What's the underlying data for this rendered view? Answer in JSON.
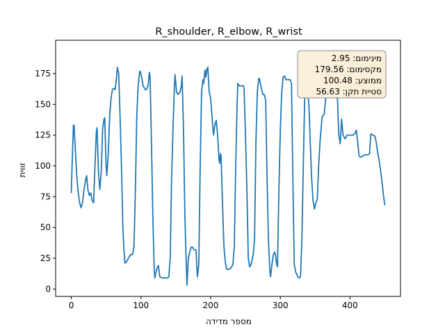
{
  "chart_data": {
    "type": "line",
    "title": "R_shoulder, R_elbow, R_wrist",
    "x_label": "מספר מדידה",
    "y_label": "זווית",
    "annotation": [
      "מינימום: 2.95",
      "מקסימום: 179.56",
      "ממוצע: 100.48",
      "סטיית תקן: 56.63"
    ],
    "color": "#1f77b4",
    "xlim": [
      -22.5,
      472.5
    ],
    "ylim": [
      -6,
      202
    ],
    "xticks": [
      0,
      100,
      200,
      300,
      400
    ],
    "yticks": [
      0,
      25,
      50,
      75,
      100,
      125,
      150,
      175
    ],
    "x": [
      0,
      2,
      3,
      4,
      6,
      8,
      10,
      12,
      14,
      16,
      18,
      21,
      22,
      24,
      26,
      28,
      30,
      32,
      34,
      36,
      37,
      39,
      41,
      43,
      45,
      47,
      48,
      50,
      51,
      53,
      55,
      57,
      59,
      61,
      63,
      65,
      66,
      68,
      70,
      72,
      74,
      76,
      77,
      79,
      82,
      85,
      88,
      90,
      92,
      94,
      96,
      98,
      99,
      101,
      103,
      106,
      108,
      110,
      111,
      112,
      113,
      115,
      117,
      119,
      120,
      122,
      124,
      125,
      127,
      130,
      134,
      138,
      140,
      142,
      144,
      146,
      148,
      149,
      151,
      153,
      156,
      158,
      159,
      161,
      163,
      165,
      166,
      168,
      170,
      172,
      174,
      176,
      179,
      181,
      183,
      185,
      187,
      189,
      190,
      192,
      193,
      195,
      196,
      198,
      200,
      202,
      204,
      206,
      208,
      210,
      212,
      213,
      214,
      215,
      217,
      219,
      221,
      223,
      226,
      229,
      232,
      234,
      236,
      238,
      239,
      241,
      244,
      247,
      248,
      250,
      252,
      254,
      256,
      258,
      261,
      263,
      265,
      267,
      269,
      270,
      272,
      275,
      277,
      279,
      281,
      283,
      285,
      286,
      288,
      290,
      292,
      293,
      295,
      296,
      298,
      300,
      302,
      304,
      306,
      308,
      310,
      312,
      314,
      316,
      318,
      320,
      322,
      325,
      327,
      329,
      331,
      333,
      335,
      337,
      339,
      341,
      343,
      345,
      347,
      349,
      351,
      353,
      355,
      357,
      360,
      363,
      366,
      369,
      372,
      375,
      378,
      380,
      382,
      384,
      386,
      388,
      390,
      393,
      396,
      400,
      404,
      407,
      409,
      411,
      413,
      415,
      418,
      422,
      426,
      428,
      430,
      433,
      436,
      438,
      440,
      442,
      444,
      446,
      448,
      450
    ],
    "values": [
      78,
      115,
      133,
      133,
      110,
      90,
      78,
      70,
      66,
      70,
      80,
      90,
      92,
      80,
      76,
      78,
      72,
      70,
      100,
      128,
      131,
      95,
      81,
      95,
      130,
      138,
      139,
      100,
      92,
      110,
      140,
      155,
      162,
      163,
      162,
      172,
      180,
      175,
      140,
      100,
      50,
      28,
      21,
      22,
      25,
      28,
      28,
      35,
      80,
      140,
      165,
      176,
      177,
      172,
      165,
      162,
      162,
      165,
      170,
      176,
      173,
      120,
      60,
      15,
      9,
      15,
      18,
      19,
      10,
      9,
      9,
      9,
      10,
      25,
      90,
      130,
      165,
      174,
      160,
      158,
      160,
      165,
      173,
      130,
      60,
      20,
      3,
      25,
      30,
      34,
      34,
      32,
      32,
      10,
      20,
      100,
      160,
      170,
      167,
      178,
      172,
      179,
      180,
      160,
      155,
      140,
      125,
      133,
      137,
      125,
      105,
      102,
      110,
      108,
      70,
      35,
      22,
      16,
      16,
      17,
      20,
      35,
      100,
      150,
      167,
      165,
      165,
      165,
      163,
      125,
      80,
      25,
      18,
      20,
      28,
      40,
      120,
      160,
      171,
      171,
      165,
      158,
      158,
      153,
      90,
      40,
      15,
      10,
      20,
      28,
      30,
      28,
      20,
      18,
      80,
      130,
      160,
      172,
      173,
      170,
      170,
      170,
      170,
      167,
      90,
      20,
      14,
      10,
      9,
      10,
      40,
      100,
      155,
      167,
      163,
      150,
      120,
      90,
      72,
      65,
      70,
      73,
      100,
      120,
      140,
      142,
      160,
      170,
      177,
      178,
      178,
      175,
      155,
      125,
      118,
      138,
      125,
      122,
      125,
      125,
      125,
      126,
      129,
      120,
      108,
      107,
      108,
      109,
      109,
      110,
      126,
      125,
      124,
      118,
      110,
      104,
      96,
      87,
      76,
      68
    ]
  }
}
